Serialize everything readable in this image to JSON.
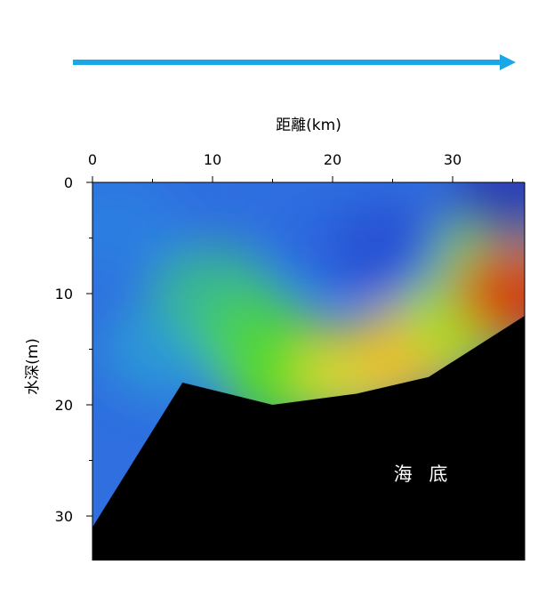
{
  "colors": {
    "arrow": "#1aa7e8",
    "seabed": "#000000",
    "axis": "#000000"
  },
  "chart_data": {
    "type": "heatmap",
    "title": "",
    "xlabel": "距離(km)",
    "ylabel": "水深(m)",
    "xlim": [
      0,
      36
    ],
    "ylim": [
      0,
      34
    ],
    "y_inverted": true,
    "x_axis_position": "top",
    "x_ticks": [
      0,
      10,
      20,
      30
    ],
    "x_tick_labels": [
      "0",
      "10",
      "20",
      "30"
    ],
    "y_ticks": [
      0,
      10,
      20,
      30
    ],
    "y_tick_labels": [
      "0",
      "10",
      "20",
      "30"
    ],
    "grid": false,
    "legend": "none",
    "direction_arrow": "left-to-right",
    "seabed_label": "海 底",
    "seabed_profile": [
      {
        "x": 0,
        "depth": 31
      },
      {
        "x": 7.5,
        "depth": 18
      },
      {
        "x": 15,
        "depth": 20
      },
      {
        "x": 22,
        "depth": 19
      },
      {
        "x": 28,
        "depth": 17.5
      },
      {
        "x": 36,
        "depth": 12
      }
    ],
    "color_fields": [
      {
        "x": 2,
        "depth": 4,
        "value": 0.22
      },
      {
        "x": 6,
        "depth": 15,
        "value": 0.3
      },
      {
        "x": 10,
        "depth": 10,
        "value": 0.4
      },
      {
        "x": 14,
        "depth": 14,
        "value": 0.5
      },
      {
        "x": 16,
        "depth": 18,
        "value": 0.55
      },
      {
        "x": 20,
        "depth": 5,
        "value": 0.16
      },
      {
        "x": 25,
        "depth": 6,
        "value": 0.1
      },
      {
        "x": 29,
        "depth": 9,
        "value": 0.12
      },
      {
        "x": 22,
        "depth": 17,
        "value": 0.72
      },
      {
        "x": 27,
        "depth": 15,
        "value": 0.78
      },
      {
        "x": 31,
        "depth": 12,
        "value": 0.62
      },
      {
        "x": 34,
        "depth": 6,
        "value": 0.6
      },
      {
        "x": 35.5,
        "depth": 10,
        "value": 0.95
      },
      {
        "x": 35,
        "depth": 1,
        "value": 0.05
      }
    ]
  }
}
